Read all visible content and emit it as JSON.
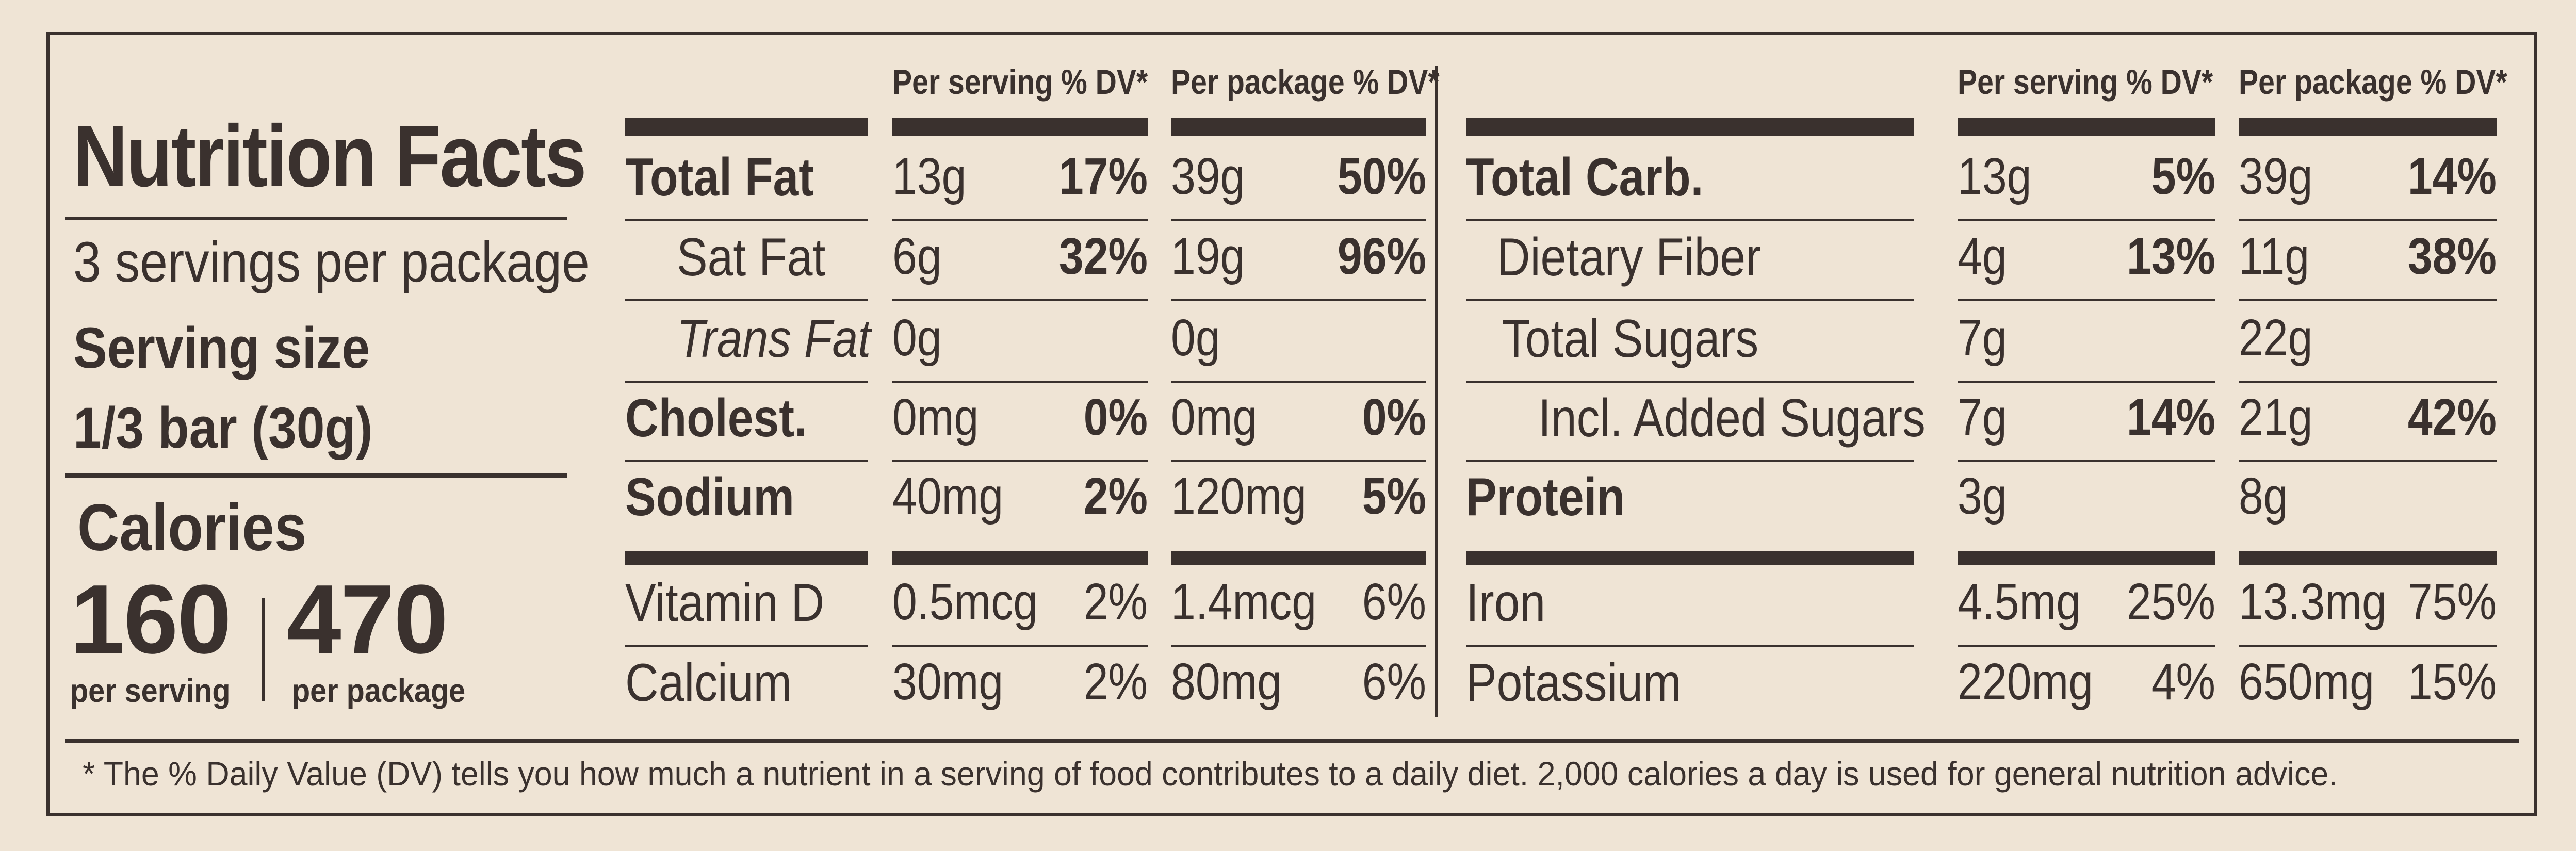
{
  "title": "Nutrition Facts",
  "servings_per_package": "3 servings per package",
  "serving_size_label": "Serving size",
  "serving_size_value": "1/3 bar (30g)",
  "calories_label": "Calories",
  "calories_per_serving": "160",
  "calories_per_serving_label": "per serving",
  "calories_per_package": "470",
  "calories_per_package_label": "per package",
  "col_per_serving": "Per serving % DV*",
  "col_per_package": "Per package % DV*",
  "left_rows": [
    {
      "label": "Total Fat",
      "serv_amt": "13g",
      "serv_dv": "17%",
      "pkg_amt": "39g",
      "pkg_dv": "50%"
    },
    {
      "label": "Sat Fat",
      "serv_amt": "6g",
      "serv_dv": "32%",
      "pkg_amt": "19g",
      "pkg_dv": "96%"
    },
    {
      "label": "Trans Fat",
      "serv_amt": "0g",
      "serv_dv": "",
      "pkg_amt": "0g",
      "pkg_dv": ""
    },
    {
      "label": "Cholest.",
      "serv_amt": "0mg",
      "serv_dv": "0%",
      "pkg_amt": "0mg",
      "pkg_dv": "0%"
    },
    {
      "label": "Sodium",
      "serv_amt": "40mg",
      "serv_dv": "2%",
      "pkg_amt": "120mg",
      "pkg_dv": "5%"
    },
    {
      "label": "Vitamin D",
      "serv_amt": "0.5mcg",
      "serv_dv": "2%",
      "pkg_amt": "1.4mcg",
      "pkg_dv": "6%"
    },
    {
      "label": "Calcium",
      "serv_amt": "30mg",
      "serv_dv": "2%",
      "pkg_amt": "80mg",
      "pkg_dv": "6%"
    }
  ],
  "right_rows": [
    {
      "label": "Total Carb.",
      "serv_amt": "13g",
      "serv_dv": "5%",
      "pkg_amt": "39g",
      "pkg_dv": "14%"
    },
    {
      "label": "Dietary Fiber",
      "serv_amt": "4g",
      "serv_dv": "13%",
      "pkg_amt": "11g",
      "pkg_dv": "38%"
    },
    {
      "label": "Total Sugars",
      "serv_amt": "7g",
      "serv_dv": "",
      "pkg_amt": "22g",
      "pkg_dv": ""
    },
    {
      "label": "Incl. Added Sugars",
      "serv_amt": "7g",
      "serv_dv": "14%",
      "pkg_amt": "21g",
      "pkg_dv": "42%"
    },
    {
      "label": "Protein",
      "serv_amt": "3g",
      "serv_dv": "",
      "pkg_amt": "8g",
      "pkg_dv": ""
    },
    {
      "label": "Iron",
      "serv_amt": "4.5mg",
      "serv_dv": "25%",
      "pkg_amt": "13.3mg",
      "pkg_dv": "75%"
    },
    {
      "label": "Potassium",
      "serv_amt": "220mg",
      "serv_dv": "4%",
      "pkg_amt": "650mg",
      "pkg_dv": "15%"
    }
  ],
  "footnote": "* The % Daily Value (DV) tells you how much a nutrient in a serving of food contributes to a daily diet. 2,000 calories a day is used for general nutrition advice."
}
